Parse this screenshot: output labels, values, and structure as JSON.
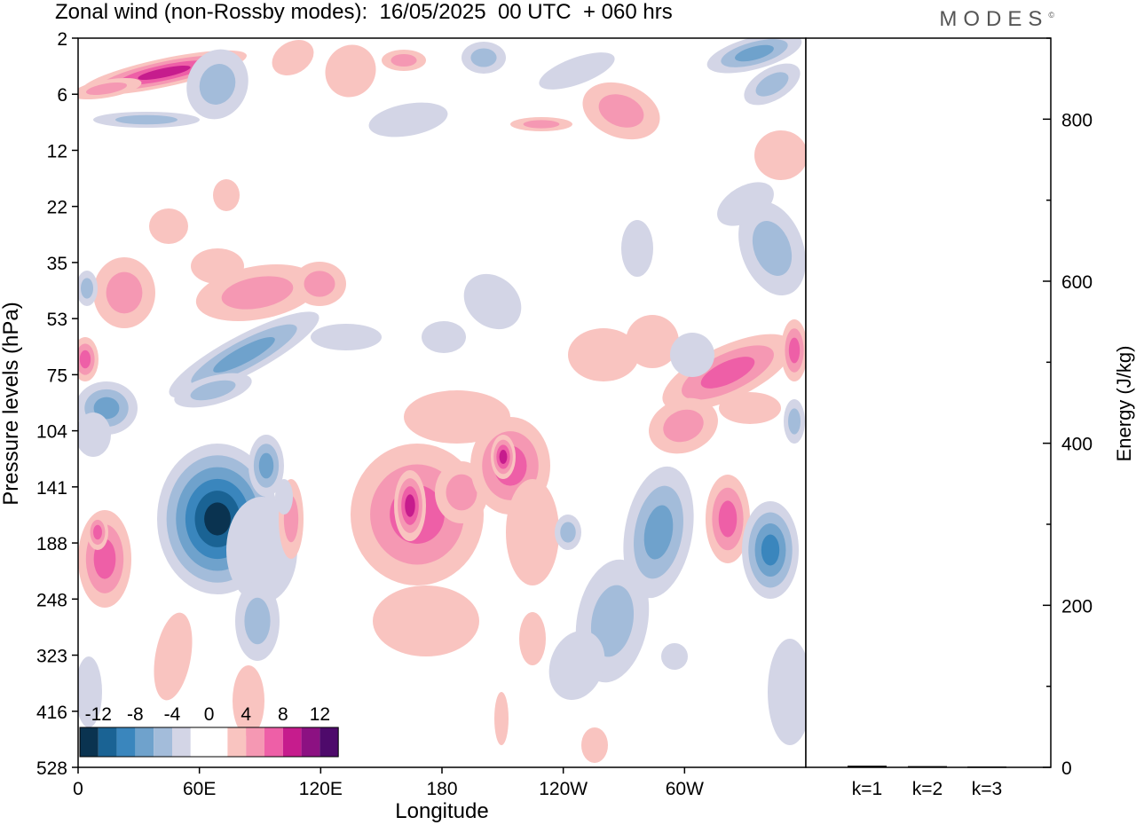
{
  "header": {
    "title": "Zonal wind (non-Rossby modes):  16/05/2025  00 UTC  + 060 hrs",
    "logo": "MODES",
    "logo_mark": "©"
  },
  "chart_data": [
    {
      "type": "heatmap",
      "xlabel": "Longitude",
      "ylabel": "Pressure levels (hPa)",
      "xticks": [
        "0",
        "60E",
        "120E",
        "180",
        "120W",
        "60W"
      ],
      "yticks": [
        "2",
        "6",
        "12",
        "22",
        "35",
        "53",
        "75",
        "104",
        "141",
        "188",
        "248",
        "323",
        "416",
        "528"
      ],
      "colorbar": {
        "labels": [
          "-12",
          "-8",
          "-4",
          "0",
          "4",
          "8",
          "12"
        ],
        "colors": [
          "#0a3350",
          "#1a6394",
          "#3a86bd",
          "#6fa2cc",
          "#a3bcda",
          "#d3d5e6",
          "#ffffff",
          "#ffffff",
          "#f9c4c0",
          "#f598b3",
          "#ee5fa7",
          "#c61c8d",
          "#8c1182",
          "#4e0a6b"
        ]
      },
      "features": [
        {
          "lon": 65,
          "level": "141-188",
          "value": -14
        },
        {
          "lon": 17,
          "level": "104",
          "value": -10
        },
        {
          "lon": 45,
          "level": "75",
          "value": -8
        },
        {
          "lon": 230,
          "level": "2",
          "value": -8
        },
        {
          "lon": 283,
          "level": "188",
          "value": -8
        },
        {
          "lon": 165,
          "level": "141",
          "value": 8
        },
        {
          "lon": 200,
          "level": "104-141",
          "value": 8
        },
        {
          "lon": 280,
          "level": "75",
          "value": 6
        },
        {
          "lon": 40,
          "level": "2-6",
          "value": 8
        },
        {
          "lon": 2,
          "level": "75",
          "value": 6
        },
        {
          "lon": 25,
          "level": "188",
          "value": 5
        }
      ]
    },
    {
      "type": "bar",
      "categories": [
        "k=1",
        "k=2",
        "k=3"
      ],
      "values": [
        2,
        1.5,
        1
      ],
      "ylabel": "Energy (J/kg)",
      "ylim": [
        0,
        900
      ],
      "yticks": [
        "0",
        "200",
        "400",
        "600",
        "800"
      ]
    }
  ]
}
